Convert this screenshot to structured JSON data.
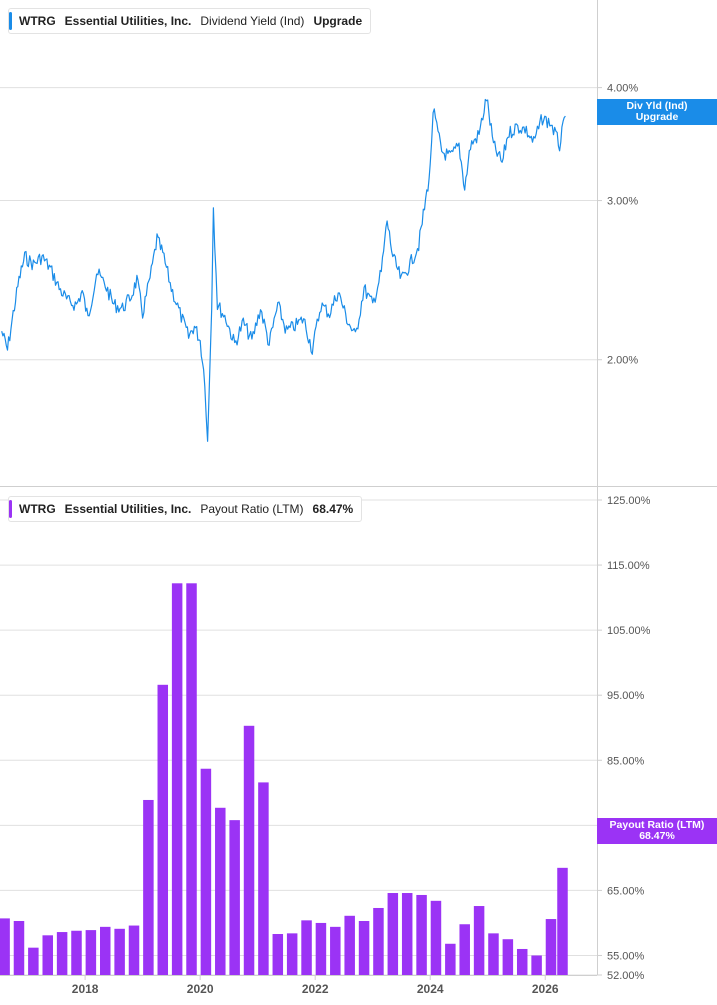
{
  "colors": {
    "yield": "#1a8ce8",
    "payout": "#9b33f5",
    "grid": "#e0e0e0",
    "axis": "#cfcfcf",
    "text": "#555555"
  },
  "top_legend": {
    "ticker": "WTRG",
    "company": "Essential Utilities, Inc.",
    "metric": "Dividend Yield (Ind)",
    "value": "Upgrade"
  },
  "top_tag": {
    "line1": "Div Yld (Ind)",
    "line2": "Upgrade"
  },
  "bottom_legend": {
    "ticker": "WTRG",
    "company": "Essential Utilities, Inc.",
    "metric": "Payout Ratio (LTM)",
    "value": "68.47%"
  },
  "bottom_tag": {
    "line1": "Payout Ratio (LTM)",
    "line2": "68.47%"
  },
  "chart_data": [
    {
      "type": "line",
      "series": [
        {
          "name": "Dividend Yield (Ind)"
        }
      ],
      "y_scale": "log",
      "y_ticks": [
        {
          "value": 4.0,
          "label": "4.00%"
        },
        {
          "value": 3.0,
          "label": "3.00%"
        },
        {
          "value": 2.0,
          "label": "2.00%"
        }
      ],
      "ylim": [
        1.45,
        5.0
      ],
      "points": [
        [
          2016.55,
          2.15
        ],
        [
          2016.65,
          2.05
        ],
        [
          2016.75,
          2.25
        ],
        [
          2016.85,
          2.45
        ],
        [
          2016.95,
          2.6
        ],
        [
          2017.1,
          2.55
        ],
        [
          2017.25,
          2.6
        ],
        [
          2017.4,
          2.52
        ],
        [
          2017.55,
          2.4
        ],
        [
          2017.7,
          2.32
        ],
        [
          2017.85,
          2.3
        ],
        [
          2017.95,
          2.38
        ],
        [
          2018.05,
          2.22
        ],
        [
          2018.2,
          2.5
        ],
        [
          2018.35,
          2.42
        ],
        [
          2018.5,
          2.3
        ],
        [
          2018.65,
          2.28
        ],
        [
          2018.8,
          2.35
        ],
        [
          2018.9,
          2.45
        ],
        [
          2019.0,
          2.25
        ],
        [
          2019.15,
          2.5
        ],
        [
          2019.25,
          2.72
        ],
        [
          2019.35,
          2.62
        ],
        [
          2019.5,
          2.4
        ],
        [
          2019.65,
          2.25
        ],
        [
          2019.8,
          2.12
        ],
        [
          2019.9,
          2.18
        ],
        [
          2020.0,
          2.1
        ],
        [
          2020.08,
          1.9
        ],
        [
          2020.13,
          1.62
        ],
        [
          2020.2,
          2.3
        ],
        [
          2020.23,
          2.95
        ],
        [
          2020.3,
          2.3
        ],
        [
          2020.45,
          2.22
        ],
        [
          2020.6,
          2.08
        ],
        [
          2020.75,
          2.2
        ],
        [
          2020.9,
          2.1
        ],
        [
          2021.05,
          2.28
        ],
        [
          2021.2,
          2.08
        ],
        [
          2021.35,
          2.3
        ],
        [
          2021.5,
          2.15
        ],
        [
          2021.65,
          2.18
        ],
        [
          2021.8,
          2.22
        ],
        [
          2021.95,
          2.05
        ],
        [
          2022.1,
          2.3
        ],
        [
          2022.25,
          2.25
        ],
        [
          2022.4,
          2.38
        ],
        [
          2022.55,
          2.22
        ],
        [
          2022.7,
          2.12
        ],
        [
          2022.85,
          2.4
        ],
        [
          2023.0,
          2.3
        ],
        [
          2023.15,
          2.5
        ],
        [
          2023.25,
          2.85
        ],
        [
          2023.35,
          2.6
        ],
        [
          2023.5,
          2.45
        ],
        [
          2023.65,
          2.55
        ],
        [
          2023.8,
          2.68
        ],
        [
          2023.92,
          3.0
        ],
        [
          2024.0,
          3.25
        ],
        [
          2024.05,
          3.78
        ],
        [
          2024.2,
          3.4
        ],
        [
          2024.35,
          3.35
        ],
        [
          2024.5,
          3.45
        ],
        [
          2024.6,
          3.1
        ],
        [
          2024.7,
          3.45
        ],
        [
          2024.85,
          3.55
        ],
        [
          2024.98,
          3.9
        ],
        [
          2025.1,
          3.45
        ],
        [
          2025.25,
          3.3
        ],
        [
          2025.35,
          3.55
        ],
        [
          2025.5,
          3.62
        ],
        [
          2025.65,
          3.6
        ],
        [
          2025.8,
          3.48
        ],
        [
          2025.95,
          3.7
        ],
        [
          2026.1,
          3.65
        ],
        [
          2026.25,
          3.45
        ],
        [
          2026.35,
          3.72
        ]
      ],
      "last_value_label": "Upgrade"
    },
    {
      "type": "bar",
      "series": [
        {
          "name": "Payout Ratio (LTM)"
        }
      ],
      "y_ticks": [
        {
          "value": 125,
          "label": "125.00%"
        },
        {
          "value": 115,
          "label": "115.00%"
        },
        {
          "value": 105,
          "label": "105.00%"
        },
        {
          "value": 95,
          "label": "95.00%"
        },
        {
          "value": 85,
          "label": "85.00%"
        },
        {
          "value": 75,
          "label": "75.00%"
        },
        {
          "value": 65,
          "label": "65.00%"
        },
        {
          "value": 55,
          "label": "55.00%"
        },
        {
          "value": 52,
          "label": "52.00%"
        }
      ],
      "ylim": [
        52,
        127
      ],
      "x_ticks": [
        "2018",
        "2020",
        "2022",
        "2024",
        "2026"
      ],
      "x_tick_values": [
        2018,
        2020,
        2022,
        2024,
        2026
      ],
      "bars": [
        {
          "x": 2016.6,
          "value": 60.7
        },
        {
          "x": 2016.85,
          "value": 60.3
        },
        {
          "x": 2017.1,
          "value": 56.2
        },
        {
          "x": 2017.35,
          "value": 58.1
        },
        {
          "x": 2017.6,
          "value": 58.6
        },
        {
          "x": 2017.85,
          "value": 58.8
        },
        {
          "x": 2018.1,
          "value": 58.9
        },
        {
          "x": 2018.35,
          "value": 59.4
        },
        {
          "x": 2018.6,
          "value": 59.1
        },
        {
          "x": 2018.85,
          "value": 59.6
        },
        {
          "x": 2019.1,
          "value": 78.9
        },
        {
          "x": 2019.35,
          "value": 96.6
        },
        {
          "x": 2019.6,
          "value": 112.2
        },
        {
          "x": 2019.85,
          "value": 112.2
        },
        {
          "x": 2020.1,
          "value": 83.7
        },
        {
          "x": 2020.35,
          "value": 77.7
        },
        {
          "x": 2020.6,
          "value": 75.8
        },
        {
          "x": 2020.85,
          "value": 90.3
        },
        {
          "x": 2021.1,
          "value": 81.6
        },
        {
          "x": 2021.35,
          "value": 58.3
        },
        {
          "x": 2021.6,
          "value": 58.4
        },
        {
          "x": 2021.85,
          "value": 60.4
        },
        {
          "x": 2022.1,
          "value": 60.0
        },
        {
          "x": 2022.35,
          "value": 59.4
        },
        {
          "x": 2022.6,
          "value": 61.1
        },
        {
          "x": 2022.85,
          "value": 60.3
        },
        {
          "x": 2023.1,
          "value": 62.3
        },
        {
          "x": 2023.35,
          "value": 64.6
        },
        {
          "x": 2023.6,
          "value": 64.6
        },
        {
          "x": 2023.85,
          "value": 64.3
        },
        {
          "x": 2024.1,
          "value": 63.4
        },
        {
          "x": 2024.35,
          "value": 56.8
        },
        {
          "x": 2024.6,
          "value": 59.8
        },
        {
          "x": 2024.85,
          "value": 62.6
        },
        {
          "x": 2025.1,
          "value": 58.4
        },
        {
          "x": 2025.35,
          "value": 57.5
        },
        {
          "x": 2025.6,
          "value": 56.0
        },
        {
          "x": 2025.85,
          "value": 55.0
        },
        {
          "x": 2026.1,
          "value": 60.6
        },
        {
          "x": 2026.3,
          "value": 68.47
        }
      ],
      "last_value_label": "68.47%"
    }
  ]
}
